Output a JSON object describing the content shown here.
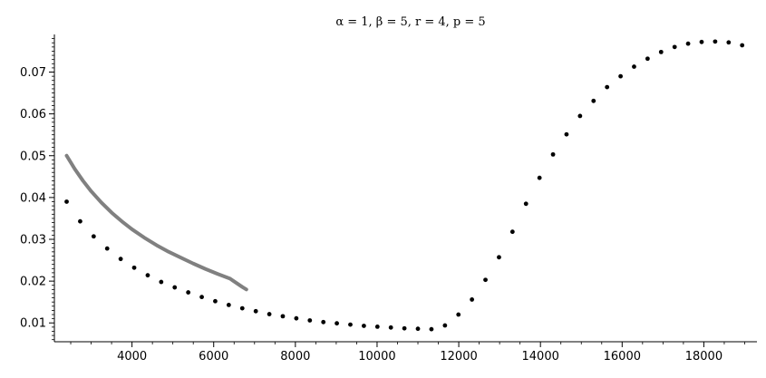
{
  "chart_data": {
    "type": "scatter",
    "title": "α = 1, β = 5, r = 4, p = 5",
    "xlabel": "",
    "ylabel": "",
    "xlim": [
      2100,
      19300
    ],
    "ylim": [
      0.0055,
      0.079
    ],
    "x_ticks": [
      4000,
      6000,
      8000,
      10000,
      12000,
      14000,
      16000,
      18000
    ],
    "x_tick_labels": [
      "4000",
      "6000",
      "8000",
      "10000",
      "12000",
      "14000",
      "16000",
      "18000"
    ],
    "y_ticks": [
      0.01,
      0.02,
      0.03,
      0.04,
      0.05,
      0.06,
      0.07
    ],
    "y_tick_labels": [
      "0.01",
      "0.02",
      "0.03",
      "0.04",
      "0.05",
      "0.06",
      "0.07"
    ],
    "grid": false,
    "legend": "none",
    "series": [
      {
        "type": "scatter",
        "color": "#000000",
        "x": [
          2400,
          2731,
          3062,
          3392,
          3723,
          4054,
          4385,
          4715,
          5046,
          5377,
          5708,
          6038,
          6369,
          6700,
          7031,
          7362,
          7692,
          8023,
          8354,
          8685,
          9015,
          9346,
          9677,
          10008,
          10338,
          10669,
          11000,
          11331,
          11662,
          11992,
          12323,
          12654,
          12985,
          13315,
          13646,
          13977,
          14308,
          14638,
          14969,
          15300,
          15631,
          15962,
          16292,
          16623,
          16954,
          17285,
          17615,
          17946,
          18277,
          18608,
          18938
        ],
        "y": [
          0.039,
          0.0343,
          0.0307,
          0.0278,
          0.0253,
          0.0232,
          0.0214,
          0.0198,
          0.0185,
          0.0173,
          0.0162,
          0.0152,
          0.0143,
          0.0135,
          0.0128,
          0.0121,
          0.0116,
          0.0111,
          0.0106,
          0.0102,
          0.0099,
          0.0096,
          0.0093,
          0.0091,
          0.0089,
          0.0087,
          0.0086,
          0.0085,
          0.0094,
          0.012,
          0.0156,
          0.0203,
          0.0257,
          0.0318,
          0.0385,
          0.0447,
          0.0503,
          0.0551,
          0.0595,
          0.0631,
          0.0664,
          0.069,
          0.0713,
          0.0732,
          0.0748,
          0.076,
          0.0768,
          0.0772,
          0.0773,
          0.0771,
          0.0764
        ]
      },
      {
        "type": "line",
        "color": "#808080",
        "x": [
          2400,
          2600,
          2800,
          3000,
          3250,
          3500,
          3750,
          4000,
          4300,
          4600,
          4900,
          5200,
          5500,
          5800,
          6100,
          6400,
          6700,
          6800
        ],
        "y": [
          0.05,
          0.0468,
          0.044,
          0.0415,
          0.0388,
          0.0364,
          0.0343,
          0.0324,
          0.0304,
          0.0286,
          0.027,
          0.0256,
          0.0242,
          0.0229,
          0.0217,
          0.0206,
          0.0186,
          0.018
        ]
      }
    ]
  }
}
